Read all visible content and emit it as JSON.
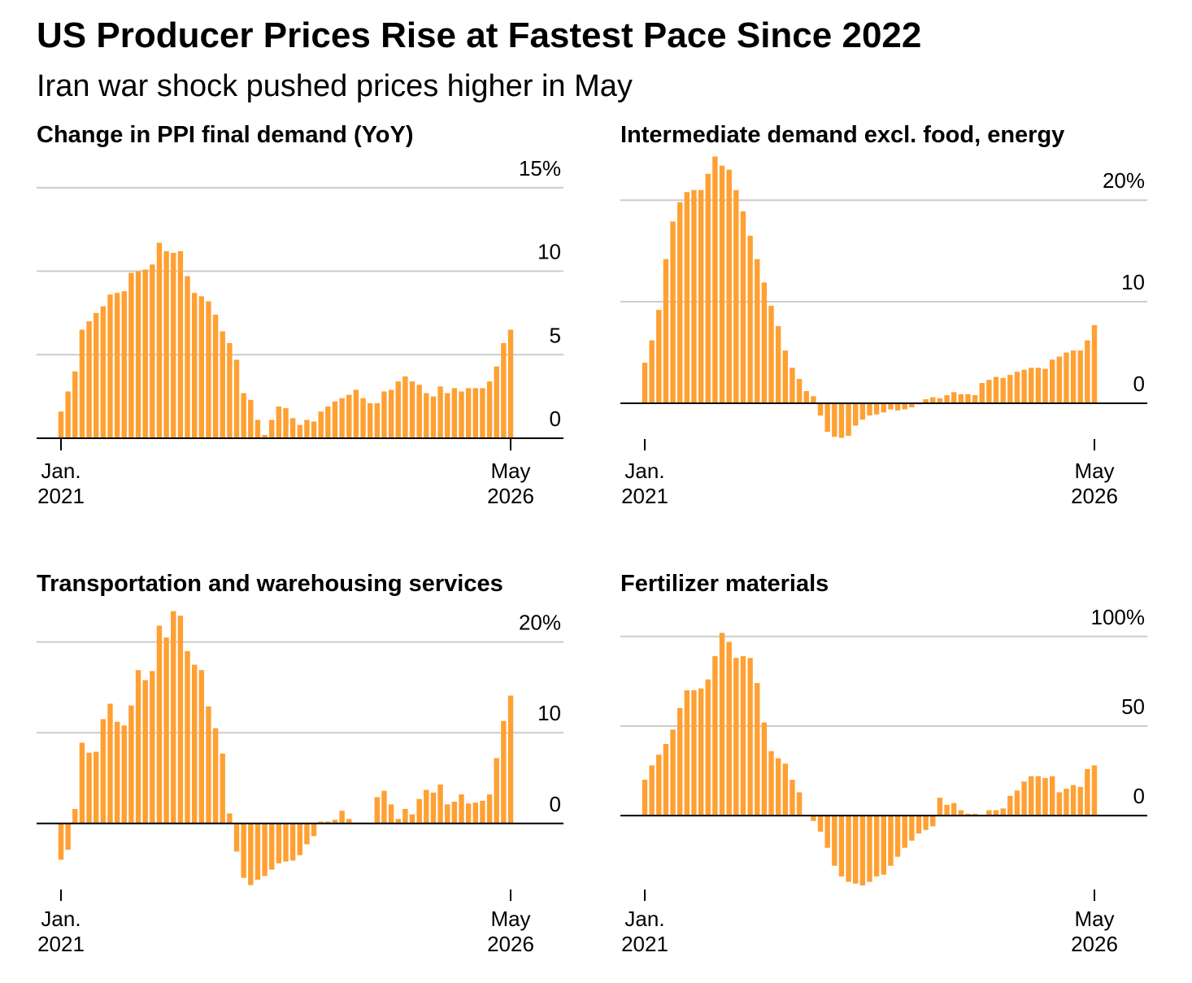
{
  "title": "US Producer Prices Rise at Fastest Pace Since 2022",
  "subtitle": "Iran war shock pushed prices higher in May",
  "chart_data": [
    {
      "type": "bar",
      "title": "Change in PPI final demand (YoY)",
      "color": "#ffa033",
      "categories": [
        "Jan. 2021",
        null,
        null,
        null,
        null,
        null,
        null,
        null,
        null,
        null,
        null,
        null,
        null,
        null,
        null,
        null,
        null,
        null,
        null,
        null,
        null,
        null,
        null,
        null,
        null,
        null,
        null,
        null,
        null,
        null,
        null,
        null,
        null,
        null,
        null,
        null,
        null,
        null,
        null,
        null,
        null,
        null,
        null,
        null,
        null,
        null,
        null,
        null,
        null,
        null,
        null,
        null,
        null,
        null,
        null,
        null,
        null,
        null,
        null,
        null,
        null,
        null,
        null,
        null,
        "May 2026"
      ],
      "values": [
        1.6,
        2.8,
        4.0,
        6.5,
        7.0,
        7.5,
        7.9,
        8.6,
        8.7,
        8.8,
        9.9,
        10.0,
        10.1,
        10.4,
        11.7,
        11.2,
        11.1,
        11.2,
        9.7,
        8.7,
        8.5,
        8.2,
        7.4,
        6.4,
        5.7,
        4.7,
        2.7,
        2.3,
        1.1,
        0.2,
        1.1,
        1.9,
        1.8,
        1.2,
        0.8,
        1.1,
        1.0,
        1.6,
        1.9,
        2.2,
        2.4,
        2.6,
        2.9,
        2.4,
        2.1,
        2.1,
        2.8,
        2.9,
        3.4,
        3.7,
        3.4,
        3.2,
        2.7,
        2.5,
        3.1,
        2.7,
        3.0,
        2.8,
        3.0,
        3.0,
        3.0,
        3.4,
        4.3,
        5.7,
        6.5
      ],
      "ylim": [
        0,
        16.5
      ],
      "yticks": [
        0,
        5,
        10,
        {
          "value": 15,
          "label": "15%"
        }
      ],
      "grid": true
    },
    {
      "type": "bar",
      "title": "Intermediate demand excl. food, energy",
      "color": "#ffa033",
      "categories": [
        "Jan. 2021",
        null,
        null,
        null,
        null,
        null,
        null,
        null,
        null,
        null,
        null,
        null,
        null,
        null,
        null,
        null,
        null,
        null,
        null,
        null,
        null,
        null,
        null,
        null,
        null,
        null,
        null,
        null,
        null,
        null,
        null,
        null,
        null,
        null,
        null,
        null,
        null,
        null,
        null,
        null,
        null,
        null,
        null,
        null,
        null,
        null,
        null,
        null,
        null,
        null,
        null,
        null,
        null,
        null,
        null,
        null,
        null,
        null,
        null,
        null,
        null,
        null,
        null,
        null,
        "May 2026"
      ],
      "values": [
        4.0,
        6.2,
        9.2,
        14.2,
        17.9,
        19.8,
        20.8,
        21.0,
        21.0,
        22.6,
        24.3,
        23.4,
        23.0,
        21.0,
        18.9,
        16.5,
        14.2,
        11.9,
        9.6,
        7.6,
        5.2,
        3.5,
        2.4,
        1.2,
        0.7,
        -1.2,
        -2.8,
        -3.3,
        -3.4,
        -3.2,
        -2.2,
        -1.6,
        -1.2,
        -1.1,
        -0.9,
        -0.6,
        -0.7,
        -0.6,
        -0.4,
        -0.1,
        0.4,
        0.6,
        0.5,
        0.8,
        1.1,
        0.9,
        0.9,
        0.8,
        2.0,
        2.3,
        2.6,
        2.5,
        2.8,
        3.1,
        3.3,
        3.5,
        3.5,
        3.4,
        4.3,
        4.6,
        5.0,
        5.2,
        5.2,
        6.2,
        7.7
      ],
      "ylim": [
        -4,
        24.5
      ],
      "yticks": [
        0,
        10,
        {
          "value": 20,
          "label": "20%"
        }
      ],
      "grid": true
    },
    {
      "type": "bar",
      "title": "Transportation and warehousing services",
      "color": "#ffa033",
      "categories": [
        "Jan. 2021",
        null,
        null,
        null,
        null,
        null,
        null,
        null,
        null,
        null,
        null,
        null,
        null,
        null,
        null,
        null,
        null,
        null,
        null,
        null,
        null,
        null,
        null,
        null,
        null,
        null,
        null,
        null,
        null,
        null,
        null,
        null,
        null,
        null,
        null,
        null,
        null,
        null,
        null,
        null,
        null,
        null,
        null,
        null,
        null,
        null,
        null,
        null,
        null,
        null,
        null,
        null,
        null,
        null,
        null,
        null,
        null,
        null,
        null,
        null,
        null,
        null,
        null,
        null,
        "May 2026"
      ],
      "values": [
        -4.0,
        -2.9,
        1.6,
        8.9,
        7.8,
        7.9,
        11.5,
        13.2,
        11.2,
        10.8,
        13.0,
        16.9,
        15.8,
        16.8,
        21.8,
        20.5,
        23.4,
        22.9,
        19.0,
        17.5,
        16.9,
        12.9,
        10.5,
        7.7,
        1.1,
        -3.1,
        -6.0,
        -6.8,
        -6.2,
        -5.8,
        -5.1,
        -4.4,
        -4.2,
        -4.1,
        -3.5,
        -2.3,
        -1.4,
        0.2,
        0.2,
        0.4,
        1.4,
        0.5,
        0.1,
        0.1,
        -0.1,
        2.9,
        3.6,
        2.1,
        0.5,
        1.6,
        1.0,
        2.7,
        3.7,
        3.4,
        4.3,
        2.1,
        2.4,
        3.2,
        2.2,
        2.3,
        2.5,
        3.2,
        7.2,
        11.3,
        14.1
      ],
      "ylim": [
        -8,
        24
      ],
      "yticks": [
        0,
        10,
        {
          "value": 20,
          "label": "20%"
        }
      ],
      "grid": true
    },
    {
      "type": "bar",
      "title": "Fertilizer materials",
      "color": "#ffa033",
      "categories": [
        "Jan. 2021",
        null,
        null,
        null,
        null,
        null,
        null,
        null,
        null,
        null,
        null,
        null,
        null,
        null,
        null,
        null,
        null,
        null,
        null,
        null,
        null,
        null,
        null,
        null,
        null,
        null,
        null,
        null,
        null,
        null,
        null,
        null,
        null,
        null,
        null,
        null,
        null,
        null,
        null,
        null,
        null,
        null,
        null,
        null,
        null,
        null,
        null,
        null,
        null,
        null,
        null,
        null,
        null,
        null,
        null,
        null,
        null,
        null,
        null,
        null,
        null,
        null,
        null,
        null,
        "May 2026"
      ],
      "values": [
        20,
        28,
        34,
        40,
        48,
        60,
        70,
        70,
        71,
        76,
        89,
        102,
        97,
        88,
        89,
        88,
        74,
        52,
        36,
        32,
        29,
        20,
        13,
        0,
        -3,
        -9,
        -18,
        -28,
        -34,
        -37,
        -38,
        -39,
        -37,
        -34,
        -33,
        -28,
        -23,
        -18,
        -14,
        -10,
        -8,
        -6,
        10,
        6,
        7,
        3,
        1,
        1,
        0,
        3,
        3,
        4,
        11,
        14,
        19,
        22,
        22,
        21,
        22,
        13,
        15,
        17,
        16,
        26,
        28
      ],
      "ylim": [
        -44,
        104
      ],
      "yticks": [
        0,
        50,
        {
          "value": 100,
          "label": "100%"
        }
      ],
      "grid": true
    }
  ]
}
